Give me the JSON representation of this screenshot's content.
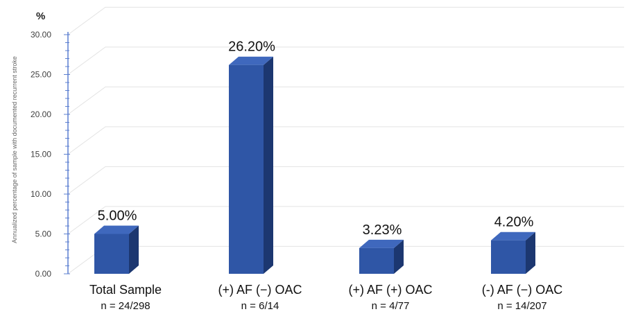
{
  "chart_data": {
    "type": "bar",
    "unit_label": "%",
    "ylabel": "Annualized percentage of sample with documented recurrent stroke",
    "xlabel": "",
    "ylim": [
      0,
      30
    ],
    "y_ticks": [
      "0.00",
      "5.00",
      "10.00",
      "15.00",
      "20.00",
      "25.00",
      "30.00"
    ],
    "categories": [
      "Total Sample",
      "(+) AF (−) OAC",
      "(+) AF (+) OAC",
      "(-) AF (−) OAC"
    ],
    "subtitles": [
      "n = 24/298",
      "n = 6/14",
      "n = 4/77",
      "n = 14/207"
    ],
    "values": [
      5.0,
      26.2,
      3.23,
      4.2
    ],
    "value_labels": [
      "5.00%",
      "26.20%",
      "3.23%",
      "4.20%"
    ],
    "grid": true,
    "colors": {
      "bar_front": "#2f56a6",
      "bar_top": "#3f68bd",
      "bar_side": "#1c3770",
      "axis": "#5b7fd0",
      "grid": "#e3e3e3"
    }
  }
}
